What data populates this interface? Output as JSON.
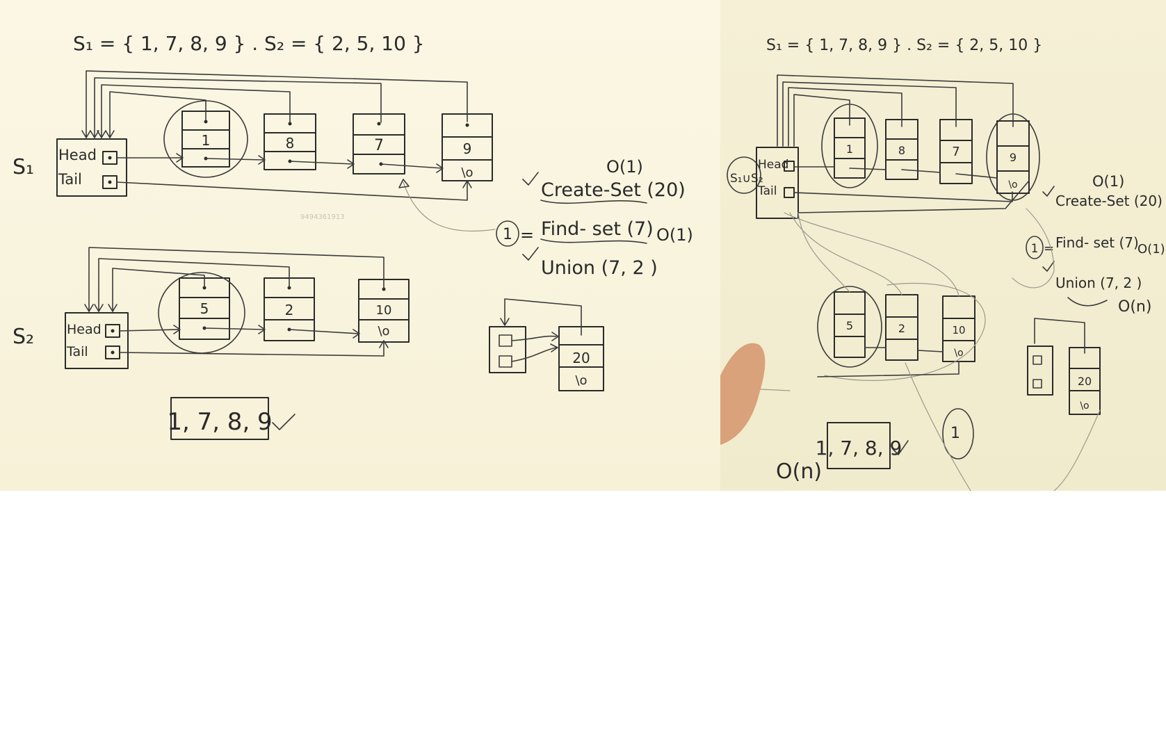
{
  "left_board": {
    "sets_line": "S₁ = { 1, 7, 8, 9 } .   S₂ = { 2, 5, 10 }",
    "watermark": "9494361913",
    "s1": {
      "label": "S₁",
      "head_label": "Head",
      "tail_label": "Tail",
      "nodes": [
        "1",
        "8",
        "7",
        "9"
      ]
    },
    "s2": {
      "label": "S₂",
      "head_label": "Head",
      "tail_label": "Tail",
      "nodes": [
        "5",
        "2",
        "10"
      ]
    },
    "ops": {
      "create_cost": "O(1)",
      "create": "Create-Set (20)",
      "find_result": "1",
      "find_eq": "=",
      "find": "Find- set (7)",
      "find_cost": "O(1)",
      "union": "Union (7, 2 )"
    },
    "new_node": "20",
    "result": "1, 7, 8, 9"
  },
  "right_board": {
    "sets_line": "S₁ = { 1, 7, 8, 9 } .   S₂ = { 2, 5, 10 }",
    "union_label": "S₁∪S₂",
    "head_label": "Head",
    "tail_label": "Tail",
    "s1_nodes": [
      "1",
      "8",
      "7",
      "9"
    ],
    "s2_nodes": [
      "5",
      "2",
      "10"
    ],
    "ops": {
      "create_cost": "O(1)",
      "create": "Create-Set (20)",
      "find_result": "1",
      "find_eq": "=",
      "find": "Find- set (7)",
      "find_cost": "O(1)",
      "union": "Union (7, 2 )",
      "union_cost": "O(n)"
    },
    "new_node": "20",
    "result": "1, 7, 8, 9",
    "circled": "1",
    "bottom_cost": "O(n)"
  }
}
